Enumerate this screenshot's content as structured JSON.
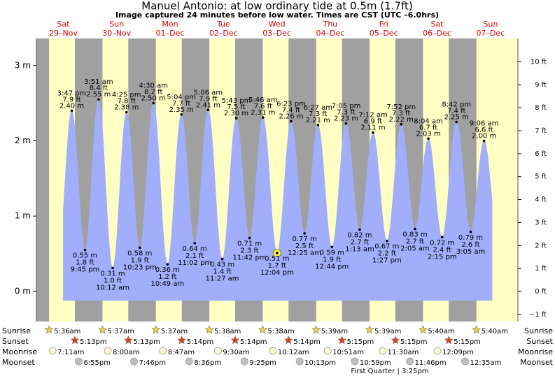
{
  "chart_data": {
    "type": "tide",
    "title": "Manuel Antonio: at low  ordinary tide at 0.5m (1.7ft)",
    "subtitle": "Image captured 24 minutes before low water. Times are CST (UTC –6.0hrs)",
    "days": [
      {
        "name": "Sat",
        "date": "29–Nov"
      },
      {
        "name": "Sun",
        "date": "30–Nov"
      },
      {
        "name": "Mon",
        "date": "01–Dec"
      },
      {
        "name": "Tue",
        "date": "02–Dec"
      },
      {
        "name": "Wed",
        "date": "03–Dec"
      },
      {
        "name": "Thu",
        "date": "04–Dec"
      },
      {
        "name": "Fri",
        "date": "05–Dec"
      },
      {
        "name": "Sat",
        "date": "06–Dec"
      },
      {
        "name": "Sun",
        "date": "07–Dec"
      }
    ],
    "ylim": [
      -0.4,
      3.36
    ],
    "yticks": [
      {
        "value": 0,
        "label": "0 m"
      },
      {
        "value": 1,
        "label": "1 m"
      },
      {
        "value": 2,
        "label": "2 m"
      },
      {
        "value": 3,
        "label": "3 m"
      }
    ],
    "y2lim": [
      -1.31,
      11.02
    ],
    "y2ticks": [
      {
        "value": -1,
        "label": "−1 ft"
      },
      {
        "value": 0,
        "label": "0 ft"
      },
      {
        "value": 1,
        "label": "1 ft"
      },
      {
        "value": 2,
        "label": "2 ft"
      },
      {
        "value": 3,
        "label": "3 ft"
      },
      {
        "value": 4,
        "label": "4 ft"
      },
      {
        "value": 5,
        "label": "5 ft"
      },
      {
        "value": 6,
        "label": "6 ft"
      },
      {
        "value": 7,
        "label": "7 ft"
      },
      {
        "value": 8,
        "label": "8 ft"
      },
      {
        "value": 9,
        "label": "9 ft"
      },
      {
        "value": 10,
        "label": "10 ft"
      }
    ],
    "colors": {
      "night": "#a0a0a0",
      "day": "#ffffc4",
      "water": "#a0aefc"
    },
    "tides": [
      {
        "time": "3:47 pm",
        "value": 2.4,
        "value_label": "2.40 m",
        "feet_label": "7.9 ft"
      },
      {
        "time": "9:45 pm",
        "value": 0.55,
        "value_label": "0.55 m",
        "feet_label": "1.8 ft"
      },
      {
        "time": "3:51 am",
        "value": 2.55,
        "value_label": "2.55 m",
        "feet_label": "8.4 ft"
      },
      {
        "time": "10:12 am",
        "value": 0.31,
        "value_label": "0.31 m",
        "feet_label": "1.0 ft"
      },
      {
        "time": "4:25 pm",
        "value": 2.38,
        "value_label": "2.38 m",
        "feet_label": "7.8 ft"
      },
      {
        "time": "10:23 pm",
        "value": 0.58,
        "value_label": "0.58 m",
        "feet_label": "1.9 ft"
      },
      {
        "time": "4:30 am",
        "value": 2.5,
        "value_label": "2.50 m",
        "feet_label": "8.2 ft"
      },
      {
        "time": "10:49 am",
        "value": 0.36,
        "value_label": "0.36 m",
        "feet_label": "1.2 ft"
      },
      {
        "time": "5:04 pm",
        "value": 2.35,
        "value_label": "2.35 m",
        "feet_label": "7.7 ft"
      },
      {
        "time": "11:02 pm",
        "value": 0.64,
        "value_label": "0.64 m",
        "feet_label": "2.1 ft"
      },
      {
        "time": "5:06 am",
        "value": 2.41,
        "value_label": "2.41 m",
        "feet_label": "7.9 ft"
      },
      {
        "time": "11:27 am",
        "value": 0.43,
        "value_label": "0.43 m",
        "feet_label": "1.4 ft"
      },
      {
        "time": "5:43 pm",
        "value": 2.3,
        "value_label": "2.30 m",
        "feet_label": "7.5 ft"
      },
      {
        "time": "11:42 pm",
        "value": 0.71,
        "value_label": "0.71 m",
        "feet_label": "2.3 ft"
      },
      {
        "time": "5:46 am",
        "value": 2.31,
        "value_label": "2.31 m",
        "feet_label": "7.6 ft"
      },
      {
        "time": "12:04 pm",
        "value": 0.51,
        "value_label": "0.51 m",
        "feet_label": "1.7 ft",
        "marked": true
      },
      {
        "time": "6:23 pm",
        "value": 2.26,
        "value_label": "2.26 m",
        "feet_label": "7.4 ft"
      },
      {
        "time": "12:25 am",
        "value": 0.77,
        "value_label": "0.77 m",
        "feet_label": "2.5 ft"
      },
      {
        "time": "6:27 am",
        "value": 2.21,
        "value_label": "2.21 m",
        "feet_label": "7.3 ft"
      },
      {
        "time": "12:44 pm",
        "value": 0.59,
        "value_label": "0.59 m",
        "feet_label": "1.9 ft"
      },
      {
        "time": "7:05 pm",
        "value": 2.23,
        "value_label": "2.23 m",
        "feet_label": "7.3 ft"
      },
      {
        "time": "1:13 am",
        "value": 0.82,
        "value_label": "0.82 m",
        "feet_label": "2.7 ft"
      },
      {
        "time": "7:12 am",
        "value": 2.11,
        "value_label": "2.11 m",
        "feet_label": "6.9 ft"
      },
      {
        "time": "1:27 pm",
        "value": 0.67,
        "value_label": "0.67 m",
        "feet_label": "2.2 ft"
      },
      {
        "time": "7:52 pm",
        "value": 2.22,
        "value_label": "2.22 m",
        "feet_label": "7.3 ft"
      },
      {
        "time": "2:05 am",
        "value": 0.83,
        "value_label": "0.83 m",
        "feet_label": "2.7 ft"
      },
      {
        "time": "8:04 am",
        "value": 2.03,
        "value_label": "2.03 m",
        "feet_label": "6.7 ft"
      },
      {
        "time": "2:15 pm",
        "value": 0.72,
        "value_label": "0.72 m",
        "feet_label": "2.4 ft"
      },
      {
        "time": "8:42 pm",
        "value": 2.25,
        "value_label": "2.25 m",
        "feet_label": "7.4 ft"
      },
      {
        "time": "3:05 am",
        "value": 0.79,
        "value_label": "0.79 m",
        "feet_label": "2.6 ft"
      },
      {
        "time": "9:06 am",
        "value": 2.0,
        "value_label": "2.00 m",
        "feet_label": "6.6 ft"
      }
    ],
    "almanac": [
      {
        "name": "Sunrise",
        "icon": "star",
        "color": "#e8d040",
        "times": [
          "5:36am",
          "5:37am",
          "5:37am",
          "5:38am",
          "5:38am",
          "5:39am",
          "5:39am",
          "5:40am",
          "5:40am"
        ]
      },
      {
        "name": "Sunset",
        "icon": "star",
        "color": "#d84020",
        "times": [
          "5:13pm",
          "5:13pm",
          "5:14pm",
          "5:14pm",
          "5:14pm",
          "5:15pm",
          "5:15pm",
          "5:15pm"
        ]
      },
      {
        "name": "Moonrise",
        "icon": "circle",
        "color": "#fffacd",
        "times": [
          "7:11am",
          "8:00am",
          "8:47am",
          "9:30am",
          "10:12am",
          "10:51am",
          "11:30am",
          "12:09pm"
        ]
      },
      {
        "name": "Moonset",
        "icon": "circle",
        "color": "#c0c0b8",
        "times": [
          "6:55pm",
          "7:46pm",
          "8:36pm",
          "9:25pm",
          "10:13pm",
          "10:59pm",
          "11:46pm",
          "12:35am"
        ]
      }
    ],
    "moon_phase": "First Quarter | 3:25pm"
  }
}
